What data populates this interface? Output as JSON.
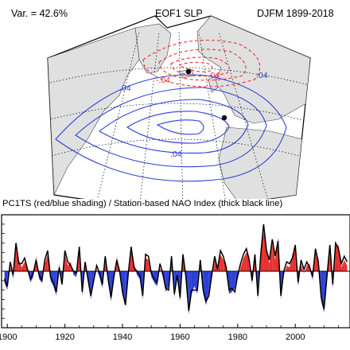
{
  "header": {
    "variance_label": "Var. = 42.6%",
    "title": "EOF1 SLP",
    "period": "DJFM 1899-2018"
  },
  "map": {
    "contour_labels": [
      ".04",
      ".04",
      ".04",
      "-.04",
      "-.04"
    ],
    "colors": {
      "positive": "#2d3fd8",
      "negative": "#e8302c",
      "land": "#e0e0e0",
      "ocean": "#ffffff"
    }
  },
  "chart_data": {
    "type": "area",
    "title": "PC1TS (red/blue shading) / Station-based NAO Index (thick black line)",
    "x_ticks": [
      1900,
      1920,
      1940,
      1960,
      1980,
      2000
    ],
    "xlim": [
      1898,
      2019
    ],
    "ylim": [
      -3,
      3
    ],
    "series": [
      {
        "name": "PC1TS",
        "style": "red/blue shading",
        "x": [
          1899,
          1900,
          1901,
          1902,
          1903,
          1904,
          1905,
          1906,
          1907,
          1908,
          1909,
          1910,
          1911,
          1912,
          1913,
          1914,
          1915,
          1916,
          1917,
          1918,
          1919,
          1920,
          1921,
          1922,
          1923,
          1924,
          1925,
          1926,
          1927,
          1928,
          1929,
          1930,
          1931,
          1932,
          1933,
          1934,
          1935,
          1936,
          1937,
          1938,
          1939,
          1940,
          1941,
          1942,
          1943,
          1944,
          1945,
          1946,
          1947,
          1948,
          1949,
          1950,
          1951,
          1952,
          1953,
          1954,
          1955,
          1956,
          1957,
          1958,
          1959,
          1960,
          1961,
          1962,
          1963,
          1964,
          1965,
          1966,
          1967,
          1968,
          1969,
          1970,
          1971,
          1972,
          1973,
          1974,
          1975,
          1976,
          1977,
          1978,
          1979,
          1980,
          1981,
          1982,
          1983,
          1984,
          1985,
          1986,
          1987,
          1988,
          1989,
          1990,
          1991,
          1992,
          1993,
          1994,
          1995,
          1996,
          1997,
          1998,
          1999,
          2000,
          2001,
          2002,
          2003,
          2004,
          2005,
          2006,
          2007,
          2008,
          2009,
          2010,
          2011,
          2012,
          2013,
          2014,
          2015,
          2016,
          2017,
          2018
        ],
        "values": [
          -0.6,
          -1.0,
          0.3,
          -0.4,
          1.3,
          0.6,
          0.2,
          0.5,
          0.2,
          -0.6,
          -0.3,
          0.8,
          -0.4,
          -0.6,
          0.4,
          0.9,
          -0.5,
          -0.8,
          -1.3,
          0.4,
          -0.5,
          0.9,
          0.3,
          0.5,
          -0.2,
          -0.3,
          1.2,
          -1.3,
          0.3,
          -0.6,
          -1.5,
          -0.3,
          0.1,
          -0.3,
          -0.9,
          0.6,
          -0.6,
          -1.6,
          -0.5,
          0.8,
          -0.2,
          -1.3,
          -1.6,
          -0.3,
          1.1,
          0.4,
          -0.2,
          -0.4,
          -1.5,
          0.7,
          0.6,
          -0.3,
          -0.6,
          -0.8,
          0.2,
          -0.3,
          -1.1,
          -0.8,
          0.6,
          -1.4,
          -0.4,
          -1.6,
          0.7,
          -0.5,
          -2.3,
          -1.2,
          -0.8,
          -1.2,
          0.4,
          -1.2,
          -1.8,
          -1.1,
          -0.4,
          0.6,
          0.3,
          0.9,
          0.6,
          0.4,
          -1.2,
          -1.1,
          -0.9,
          -0.4,
          0.2,
          0.7,
          1.0,
          0.8,
          -0.7,
          0.7,
          -1.5,
          1.1,
          2.1,
          1.3,
          0.4,
          1.5,
          0.6,
          1.8,
          -1.5,
          -0.2,
          0.3,
          0.2,
          0.9,
          1.2,
          -0.8,
          0.4,
          -0.1,
          0.3,
          0.4,
          -0.5,
          1.0,
          0.7,
          -1.6,
          -2.2,
          -0.5,
          1.2,
          -0.9,
          1.3,
          1.4,
          0.2,
          0.6,
          0.3
        ]
      },
      {
        "name": "Station-based NAO Index",
        "style": "thick black line",
        "x": [
          1899,
          1900,
          1901,
          1902,
          1903,
          1904,
          1905,
          1906,
          1907,
          1908,
          1909,
          1910,
          1911,
          1912,
          1913,
          1914,
          1915,
          1916,
          1917,
          1918,
          1919,
          1920,
          1921,
          1922,
          1923,
          1924,
          1925,
          1926,
          1927,
          1928,
          1929,
          1930,
          1931,
          1932,
          1933,
          1934,
          1935,
          1936,
          1937,
          1938,
          1939,
          1940,
          1941,
          1942,
          1943,
          1944,
          1945,
          1946,
          1947,
          1948,
          1949,
          1950,
          1951,
          1952,
          1953,
          1954,
          1955,
          1956,
          1957,
          1958,
          1959,
          1960,
          1961,
          1962,
          1963,
          1964,
          1965,
          1966,
          1967,
          1968,
          1969,
          1970,
          1971,
          1972,
          1973,
          1974,
          1975,
          1976,
          1977,
          1978,
          1979,
          1980,
          1981,
          1982,
          1983,
          1984,
          1985,
          1986,
          1987,
          1988,
          1989,
          1990,
          1991,
          1992,
          1993,
          1994,
          1995,
          1996,
          1997,
          1998,
          1999,
          2000,
          2001,
          2002,
          2003,
          2004,
          2005,
          2006,
          2007,
          2008,
          2009,
          2010,
          2011,
          2012,
          2013,
          2014,
          2015,
          2016,
          2017,
          2018
        ],
        "values": [
          -0.4,
          -0.8,
          0.5,
          -0.2,
          1.5,
          0.4,
          0.4,
          0.7,
          0.1,
          -0.4,
          -0.1,
          0.6,
          -0.2,
          -0.5,
          0.6,
          1.1,
          -0.3,
          -0.6,
          -1.1,
          0.2,
          -0.7,
          1.1,
          0.5,
          0.3,
          0.0,
          -0.1,
          1.3,
          -1.1,
          0.5,
          -0.4,
          -1.3,
          -0.5,
          0.3,
          -0.1,
          -0.7,
          0.8,
          -0.4,
          -1.4,
          -0.3,
          0.6,
          0.0,
          -1.1,
          -1.8,
          -0.1,
          1.3,
          0.2,
          0.0,
          -0.2,
          -1.3,
          0.9,
          0.8,
          -0.1,
          -0.4,
          -0.6,
          0.4,
          -0.1,
          -0.9,
          -1.0,
          0.8,
          -1.2,
          -0.2,
          -1.4,
          0.9,
          -0.3,
          -2.1,
          -1.0,
          -1.0,
          -1.0,
          0.6,
          -1.0,
          -1.6,
          -1.3,
          -0.2,
          0.8,
          0.1,
          1.1,
          0.8,
          0.2,
          -1.0,
          -0.9,
          -1.1,
          -0.2,
          0.4,
          0.9,
          1.2,
          0.6,
          -0.5,
          0.9,
          -1.3,
          0.9,
          2.5,
          1.1,
          0.6,
          1.7,
          0.8,
          1.6,
          -1.3,
          0.0,
          0.5,
          0.4,
          0.7,
          1.4,
          -0.6,
          0.6,
          0.1,
          0.5,
          0.2,
          -0.3,
          1.2,
          0.5,
          -1.4,
          -2.0,
          -0.3,
          1.4,
          -0.7,
          1.5,
          1.2,
          0.4,
          0.8,
          0.5
        ]
      }
    ]
  }
}
